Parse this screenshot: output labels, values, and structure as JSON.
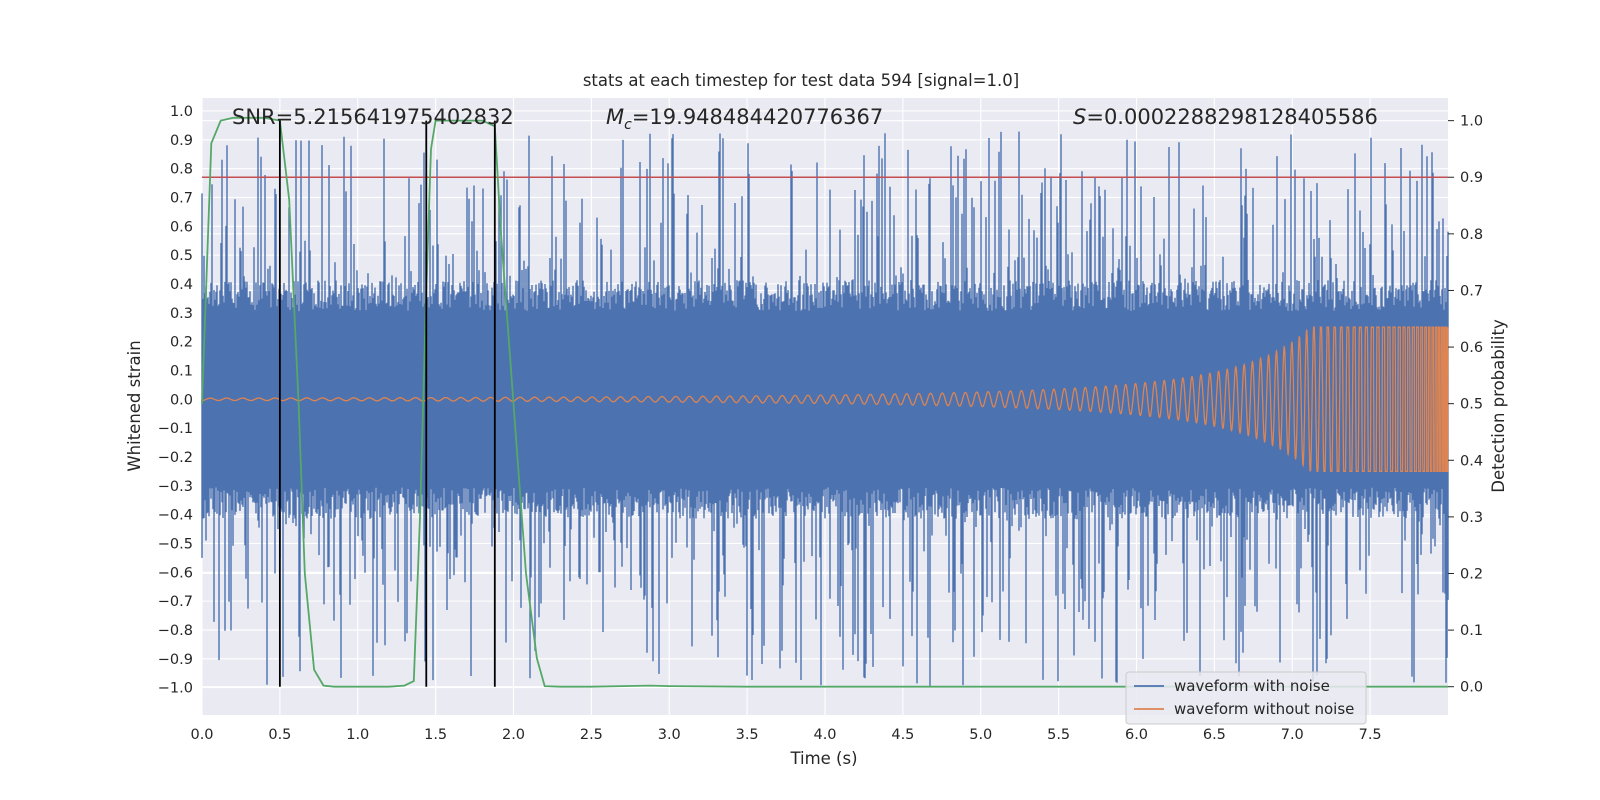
{
  "chart_data": {
    "type": "line",
    "title": "stats at each timestep for test data 594 [signal=1.0]",
    "xlabel": "Time (s)",
    "ylabel": "Whitened strain",
    "y2label": "Detection probability",
    "xlim": [
      0,
      8
    ],
    "ylim": [
      -1.095,
      1.045
    ],
    "y2lim": [
      -0.05,
      1.04
    ],
    "xticks": [
      0.0,
      0.5,
      1.0,
      1.5,
      2.0,
      2.5,
      3.0,
      3.5,
      4.0,
      4.5,
      5.0,
      5.5,
      6.0,
      6.5,
      7.0,
      7.5
    ],
    "xtick_labels": [
      "0.0",
      "0.5",
      "1.0",
      "1.5",
      "2.0",
      "2.5",
      "3.0",
      "3.5",
      "4.0",
      "4.5",
      "5.0",
      "5.5",
      "6.0",
      "6.5",
      "7.0",
      "7.5"
    ],
    "yticks": [
      1.0,
      0.9,
      0.8,
      0.7,
      0.6,
      0.5,
      0.4,
      0.3,
      0.2,
      0.1,
      0.0,
      -0.1,
      -0.2,
      -0.3,
      -0.4,
      -0.5,
      -0.6,
      -0.7,
      -0.8,
      -0.9,
      -1.0
    ],
    "ytick_labels": [
      "1.0",
      "0.9",
      "0.8",
      "0.7",
      "0.6",
      "0.5",
      "0.4",
      "0.3",
      "0.2",
      "0.1",
      "0.0",
      "−0.1",
      "−0.2",
      "−0.3",
      "−0.4",
      "−0.5",
      "−0.6",
      "−0.7",
      "−0.8",
      "−0.9",
      "−1.0"
    ],
    "y2ticks": [
      1.0,
      0.9,
      0.8,
      0.7,
      0.6,
      0.5,
      0.4,
      0.3,
      0.2,
      0.1,
      0.0
    ],
    "y2tick_labels": [
      "1.0",
      "0.9",
      "0.8",
      "0.7",
      "0.6",
      "0.5",
      "0.4",
      "0.3",
      "0.2",
      "0.1",
      "0.0"
    ],
    "grid": true,
    "annotations": {
      "snr": "SNR=5.215641975402832",
      "mc_symbol": "M",
      "mc_sub": "c",
      "mc_value": "=19.948484420776367",
      "s_symbol": "S",
      "s_value": "=0.0002288298128405586"
    },
    "threshold": 0.9,
    "vlines": [
      0.5,
      1.44,
      1.88
    ],
    "series": [
      {
        "name": "waveform with noise",
        "axis": "left",
        "color": "#4c72b0",
        "envelope": 0.36,
        "peak_max": 0.93,
        "peak_min": -1.0
      },
      {
        "name": "waveform without noise",
        "axis": "left",
        "color": "#dd8452"
      },
      {
        "axis": "right",
        "color": "#55a868",
        "x": [
          0.0,
          0.06,
          0.12,
          0.2,
          0.3,
          0.4,
          0.5,
          0.56,
          0.62,
          0.66,
          0.72,
          0.78,
          0.85,
          1.0,
          1.2,
          1.3,
          1.36,
          1.4,
          1.44,
          1.47,
          1.5,
          1.6,
          1.7,
          1.8,
          1.88,
          1.92,
          2.0,
          2.08,
          2.15,
          2.2,
          2.3,
          2.5,
          2.88,
          3.0,
          3.5,
          4.0,
          5.0,
          6.0,
          7.0,
          8.0
        ],
        "y": [
          0.5,
          0.96,
          1.0,
          1.005,
          1.005,
          1.005,
          1.0,
          0.86,
          0.5,
          0.2,
          0.03,
          0.002,
          0.0,
          0.0,
          0.0,
          0.002,
          0.01,
          0.3,
          0.7,
          0.95,
          1.0,
          1.0,
          1.0,
          1.0,
          0.99,
          0.8,
          0.5,
          0.2,
          0.05,
          0.001,
          0.0,
          0.0,
          0.002,
          0.001,
          0.0,
          0.0,
          0.0,
          0.0,
          0.0,
          0.0
        ]
      }
    ],
    "legend_position": "lower-right",
    "colors": {
      "plot_bg": "#eaeaf2",
      "grid": "#ffffff",
      "threshold": "#c44e52",
      "vline": "#000000"
    }
  }
}
